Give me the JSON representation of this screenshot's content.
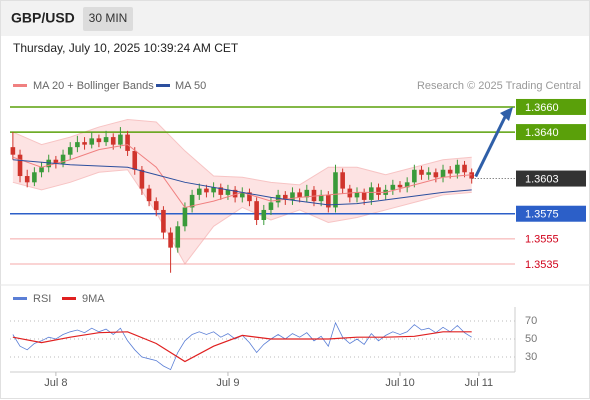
{
  "header": {
    "symbol": "GBP/USD",
    "timeframe": "30 MIN",
    "datetime": "Thursday, July 10, 2025 10:39:24 AM CET"
  },
  "chart_data": [
    {
      "type": "candlestick",
      "source": "Research © 2025 Trading Central",
      "up_color": "#3a9a3a",
      "down_color": "#d0342c",
      "xlim": [
        -6.4,
        63.9
      ],
      "ylim": [
        1.352,
        1.367
      ],
      "x": [
        -6,
        -5,
        -4,
        -3,
        -2,
        -1,
        0,
        1,
        2,
        3,
        4,
        5,
        6,
        7,
        8,
        9,
        10,
        11,
        12,
        13,
        14,
        15,
        16,
        17,
        18,
        19,
        20,
        21,
        22,
        23,
        24,
        25,
        26,
        27,
        28,
        29,
        30,
        31,
        32,
        33,
        34,
        35,
        36,
        37,
        38,
        39,
        40,
        41,
        42,
        43,
        44,
        45,
        46,
        47,
        48,
        49,
        50,
        51,
        52,
        53,
        54,
        55,
        56,
        57,
        58
      ],
      "candles": [
        [
          1.3628,
          1.364,
          1.3618,
          1.3622
        ],
        [
          1.3622,
          1.3626,
          1.36,
          1.3605
        ],
        [
          1.3605,
          1.361,
          1.3596,
          1.36
        ],
        [
          1.36,
          1.3612,
          1.3597,
          1.3608
        ],
        [
          1.3608,
          1.3616,
          1.3604,
          1.3612
        ],
        [
          1.3612,
          1.3622,
          1.3608,
          1.3618
        ],
        [
          1.3618,
          1.3621,
          1.3611,
          1.3615
        ],
        [
          1.3615,
          1.3626,
          1.3612,
          1.3622
        ],
        [
          1.3622,
          1.3632,
          1.3618,
          1.3628
        ],
        [
          1.3628,
          1.3637,
          1.3624,
          1.3632
        ],
        [
          1.3632,
          1.3636,
          1.3626,
          1.363
        ],
        [
          1.363,
          1.364,
          1.3627,
          1.3635
        ],
        [
          1.3635,
          1.3638,
          1.3628,
          1.3632
        ],
        [
          1.3632,
          1.3641,
          1.3629,
          1.3636
        ],
        [
          1.3636,
          1.3639,
          1.3626,
          1.363
        ],
        [
          1.363,
          1.3644,
          1.3627,
          1.3638
        ],
        [
          1.3638,
          1.3641,
          1.3621,
          1.3625
        ],
        [
          1.3625,
          1.3628,
          1.3606,
          1.361
        ],
        [
          1.361,
          1.3613,
          1.359,
          1.3595
        ],
        [
          1.3595,
          1.3598,
          1.3581,
          1.3585
        ],
        [
          1.3585,
          1.3588,
          1.3573,
          1.3578
        ],
        [
          1.3578,
          1.3581,
          1.3555,
          1.356
        ],
        [
          1.356,
          1.3564,
          1.3528,
          1.3548
        ],
        [
          1.3548,
          1.3569,
          1.3544,
          1.3565
        ],
        [
          1.3565,
          1.3584,
          1.3561,
          1.358
        ],
        [
          1.358,
          1.3594,
          1.3576,
          1.359
        ],
        [
          1.359,
          1.3599,
          1.3586,
          1.3595
        ],
        [
          1.3595,
          1.3598,
          1.3588,
          1.3592
        ],
        [
          1.3592,
          1.36,
          1.3588,
          1.3596
        ],
        [
          1.3596,
          1.3599,
          1.3586,
          1.359
        ],
        [
          1.359,
          1.3598,
          1.3586,
          1.3594
        ],
        [
          1.3594,
          1.3597,
          1.3584,
          1.3588
        ],
        [
          1.3588,
          1.3596,
          1.3584,
          1.3592
        ],
        [
          1.3592,
          1.3595,
          1.3581,
          1.3585
        ],
        [
          1.3585,
          1.3588,
          1.3566,
          1.357
        ],
        [
          1.357,
          1.3582,
          1.3566,
          1.3578
        ],
        [
          1.3578,
          1.3588,
          1.3574,
          1.3584
        ],
        [
          1.3584,
          1.3594,
          1.358,
          1.359
        ],
        [
          1.359,
          1.3593,
          1.3582,
          1.3586
        ],
        [
          1.3586,
          1.3596,
          1.3582,
          1.3592
        ],
        [
          1.3592,
          1.3595,
          1.3584,
          1.3588
        ],
        [
          1.3588,
          1.3598,
          1.3584,
          1.3594
        ],
        [
          1.3594,
          1.3597,
          1.3581,
          1.3585
        ],
        [
          1.3585,
          1.3594,
          1.3581,
          1.359
        ],
        [
          1.359,
          1.3593,
          1.3576,
          1.358
        ],
        [
          1.358,
          1.3614,
          1.3576,
          1.3608
        ],
        [
          1.3608,
          1.3611,
          1.3591,
          1.3595
        ],
        [
          1.3595,
          1.3598,
          1.3584,
          1.3588
        ],
        [
          1.3588,
          1.3596,
          1.3584,
          1.3592
        ],
        [
          1.3592,
          1.3595,
          1.3582,
          1.3586
        ],
        [
          1.3586,
          1.36,
          1.3582,
          1.3596
        ],
        [
          1.3596,
          1.3599,
          1.3586,
          1.359
        ],
        [
          1.359,
          1.3598,
          1.3586,
          1.3594
        ],
        [
          1.3594,
          1.3602,
          1.359,
          1.3598
        ],
        [
          1.3598,
          1.3601,
          1.3592,
          1.3596
        ],
        [
          1.3596,
          1.3604,
          1.3592,
          1.36
        ],
        [
          1.36,
          1.3614,
          1.3596,
          1.361
        ],
        [
          1.361,
          1.3613,
          1.3602,
          1.3606
        ],
        [
          1.3606,
          1.3612,
          1.3602,
          1.3608
        ],
        [
          1.3608,
          1.3611,
          1.36,
          1.3604
        ],
        [
          1.3604,
          1.3614,
          1.36,
          1.361
        ],
        [
          1.361,
          1.3613,
          1.3603,
          1.3607
        ],
        [
          1.3607,
          1.3618,
          1.3603,
          1.3614
        ],
        [
          1.3614,
          1.3617,
          1.3604,
          1.3608
        ],
        [
          1.3608,
          1.3611,
          1.3599,
          1.3603
        ]
      ],
      "series": [
        {
          "name": "MA 20 + Bollinger Bands",
          "color": "#f08080",
          "band_color": "#fde3e3",
          "x": [
            -6,
            -2,
            2,
            6,
            10,
            14,
            18,
            22,
            26,
            30,
            34,
            38,
            42,
            46,
            50,
            54,
            58
          ],
          "values": [
            1.362,
            1.3612,
            1.3618,
            1.3626,
            1.363,
            1.3612,
            1.358,
            1.3585,
            1.3592,
            1.3585,
            1.3588,
            1.359,
            1.3592,
            1.3592,
            1.3598,
            1.3604,
            1.3606
          ],
          "upper": [
            1.364,
            1.363,
            1.3636,
            1.3644,
            1.365,
            1.3648,
            1.3625,
            1.3605,
            1.3604,
            1.36,
            1.3598,
            1.3612,
            1.3612,
            1.3606,
            1.3612,
            1.3618,
            1.362
          ],
          "lower": [
            1.36,
            1.3594,
            1.36,
            1.3608,
            1.361,
            1.3576,
            1.3535,
            1.3565,
            1.358,
            1.357,
            1.3578,
            1.3568,
            1.3572,
            1.3578,
            1.3584,
            1.359,
            1.3592
          ]
        },
        {
          "name": "MA 50",
          "color": "#2c4f9e",
          "x": [
            -6,
            -2,
            2,
            6,
            10,
            14,
            18,
            22,
            26,
            30,
            34,
            38,
            42,
            46,
            50,
            54,
            58
          ],
          "values": [
            1.3618,
            1.3616,
            1.3614,
            1.3613,
            1.3612,
            1.3606,
            1.36,
            1.3596,
            1.3592,
            1.3588,
            1.3585,
            1.3582,
            1.3583,
            1.3586,
            1.3589,
            1.3592,
            1.3594
          ]
        }
      ],
      "levels": [
        {
          "value": 1.366,
          "label": "1.3660",
          "color": "#5aa00a",
          "style": "box"
        },
        {
          "value": 1.364,
          "label": "1.3640",
          "color": "#5aa00a",
          "style": "box"
        },
        {
          "value": 1.3575,
          "label": "1.3575",
          "color": "#2c5fc8",
          "style": "box"
        },
        {
          "value": 1.3555,
          "label": "1.3555",
          "color": "#d0021b",
          "style": "text"
        },
        {
          "value": 1.3535,
          "label": "1.3535",
          "color": "#d0021b",
          "style": "text"
        }
      ],
      "current": {
        "value": 1.3603,
        "label": "1.3603",
        "color": "#333333"
      },
      "arrow_color": "#2f5fa8"
    },
    {
      "type": "line",
      "xlim": [
        -6.4,
        63.9
      ],
      "ylim": [
        13,
        85
      ],
      "yticks": [
        70,
        50,
        30
      ],
      "xticks": [
        {
          "value": 0,
          "label": "Jul 8"
        },
        {
          "value": 24,
          "label": "Jul 9"
        },
        {
          "value": 48,
          "label": "Jul 10"
        },
        {
          "value": 59,
          "label": "Jul 11"
        }
      ],
      "series": [
        {
          "name": "RSI",
          "color": "#5b7fd6",
          "x": [
            -6,
            -5,
            -4,
            -3,
            -2,
            -1,
            0,
            1,
            2,
            3,
            4,
            5,
            6,
            7,
            8,
            9,
            10,
            11,
            12,
            13,
            14,
            15,
            16,
            17,
            18,
            19,
            20,
            21,
            22,
            23,
            24,
            25,
            26,
            27,
            28,
            29,
            30,
            31,
            32,
            33,
            34,
            35,
            36,
            37,
            38,
            39,
            40,
            41,
            42,
            43,
            44,
            45,
            46,
            47,
            48,
            49,
            50,
            51,
            52,
            53,
            54,
            55,
            56,
            57,
            58
          ],
          "values": [
            55,
            42,
            38,
            45,
            48,
            52,
            50,
            55,
            58,
            60,
            57,
            62,
            58,
            61,
            55,
            62,
            48,
            38,
            30,
            28,
            26,
            20,
            16,
            35,
            48,
            55,
            58,
            55,
            58,
            52,
            56,
            50,
            54,
            46,
            35,
            44,
            50,
            55,
            50,
            56,
            52,
            57,
            48,
            53,
            42,
            68,
            52,
            45,
            50,
            44,
            56,
            48,
            54,
            58,
            55,
            58,
            66,
            60,
            62,
            57,
            63,
            58,
            65,
            57,
            52
          ]
        },
        {
          "name": "9MA",
          "color": "#e02020",
          "x": [
            -6,
            -2,
            2,
            6,
            10,
            14,
            18,
            22,
            26,
            30,
            34,
            38,
            42,
            46,
            50,
            54,
            58
          ],
          "values": [
            52,
            46,
            52,
            57,
            58,
            45,
            25,
            42,
            54,
            50,
            50,
            50,
            52,
            52,
            53,
            58,
            58
          ]
        }
      ]
    }
  ]
}
